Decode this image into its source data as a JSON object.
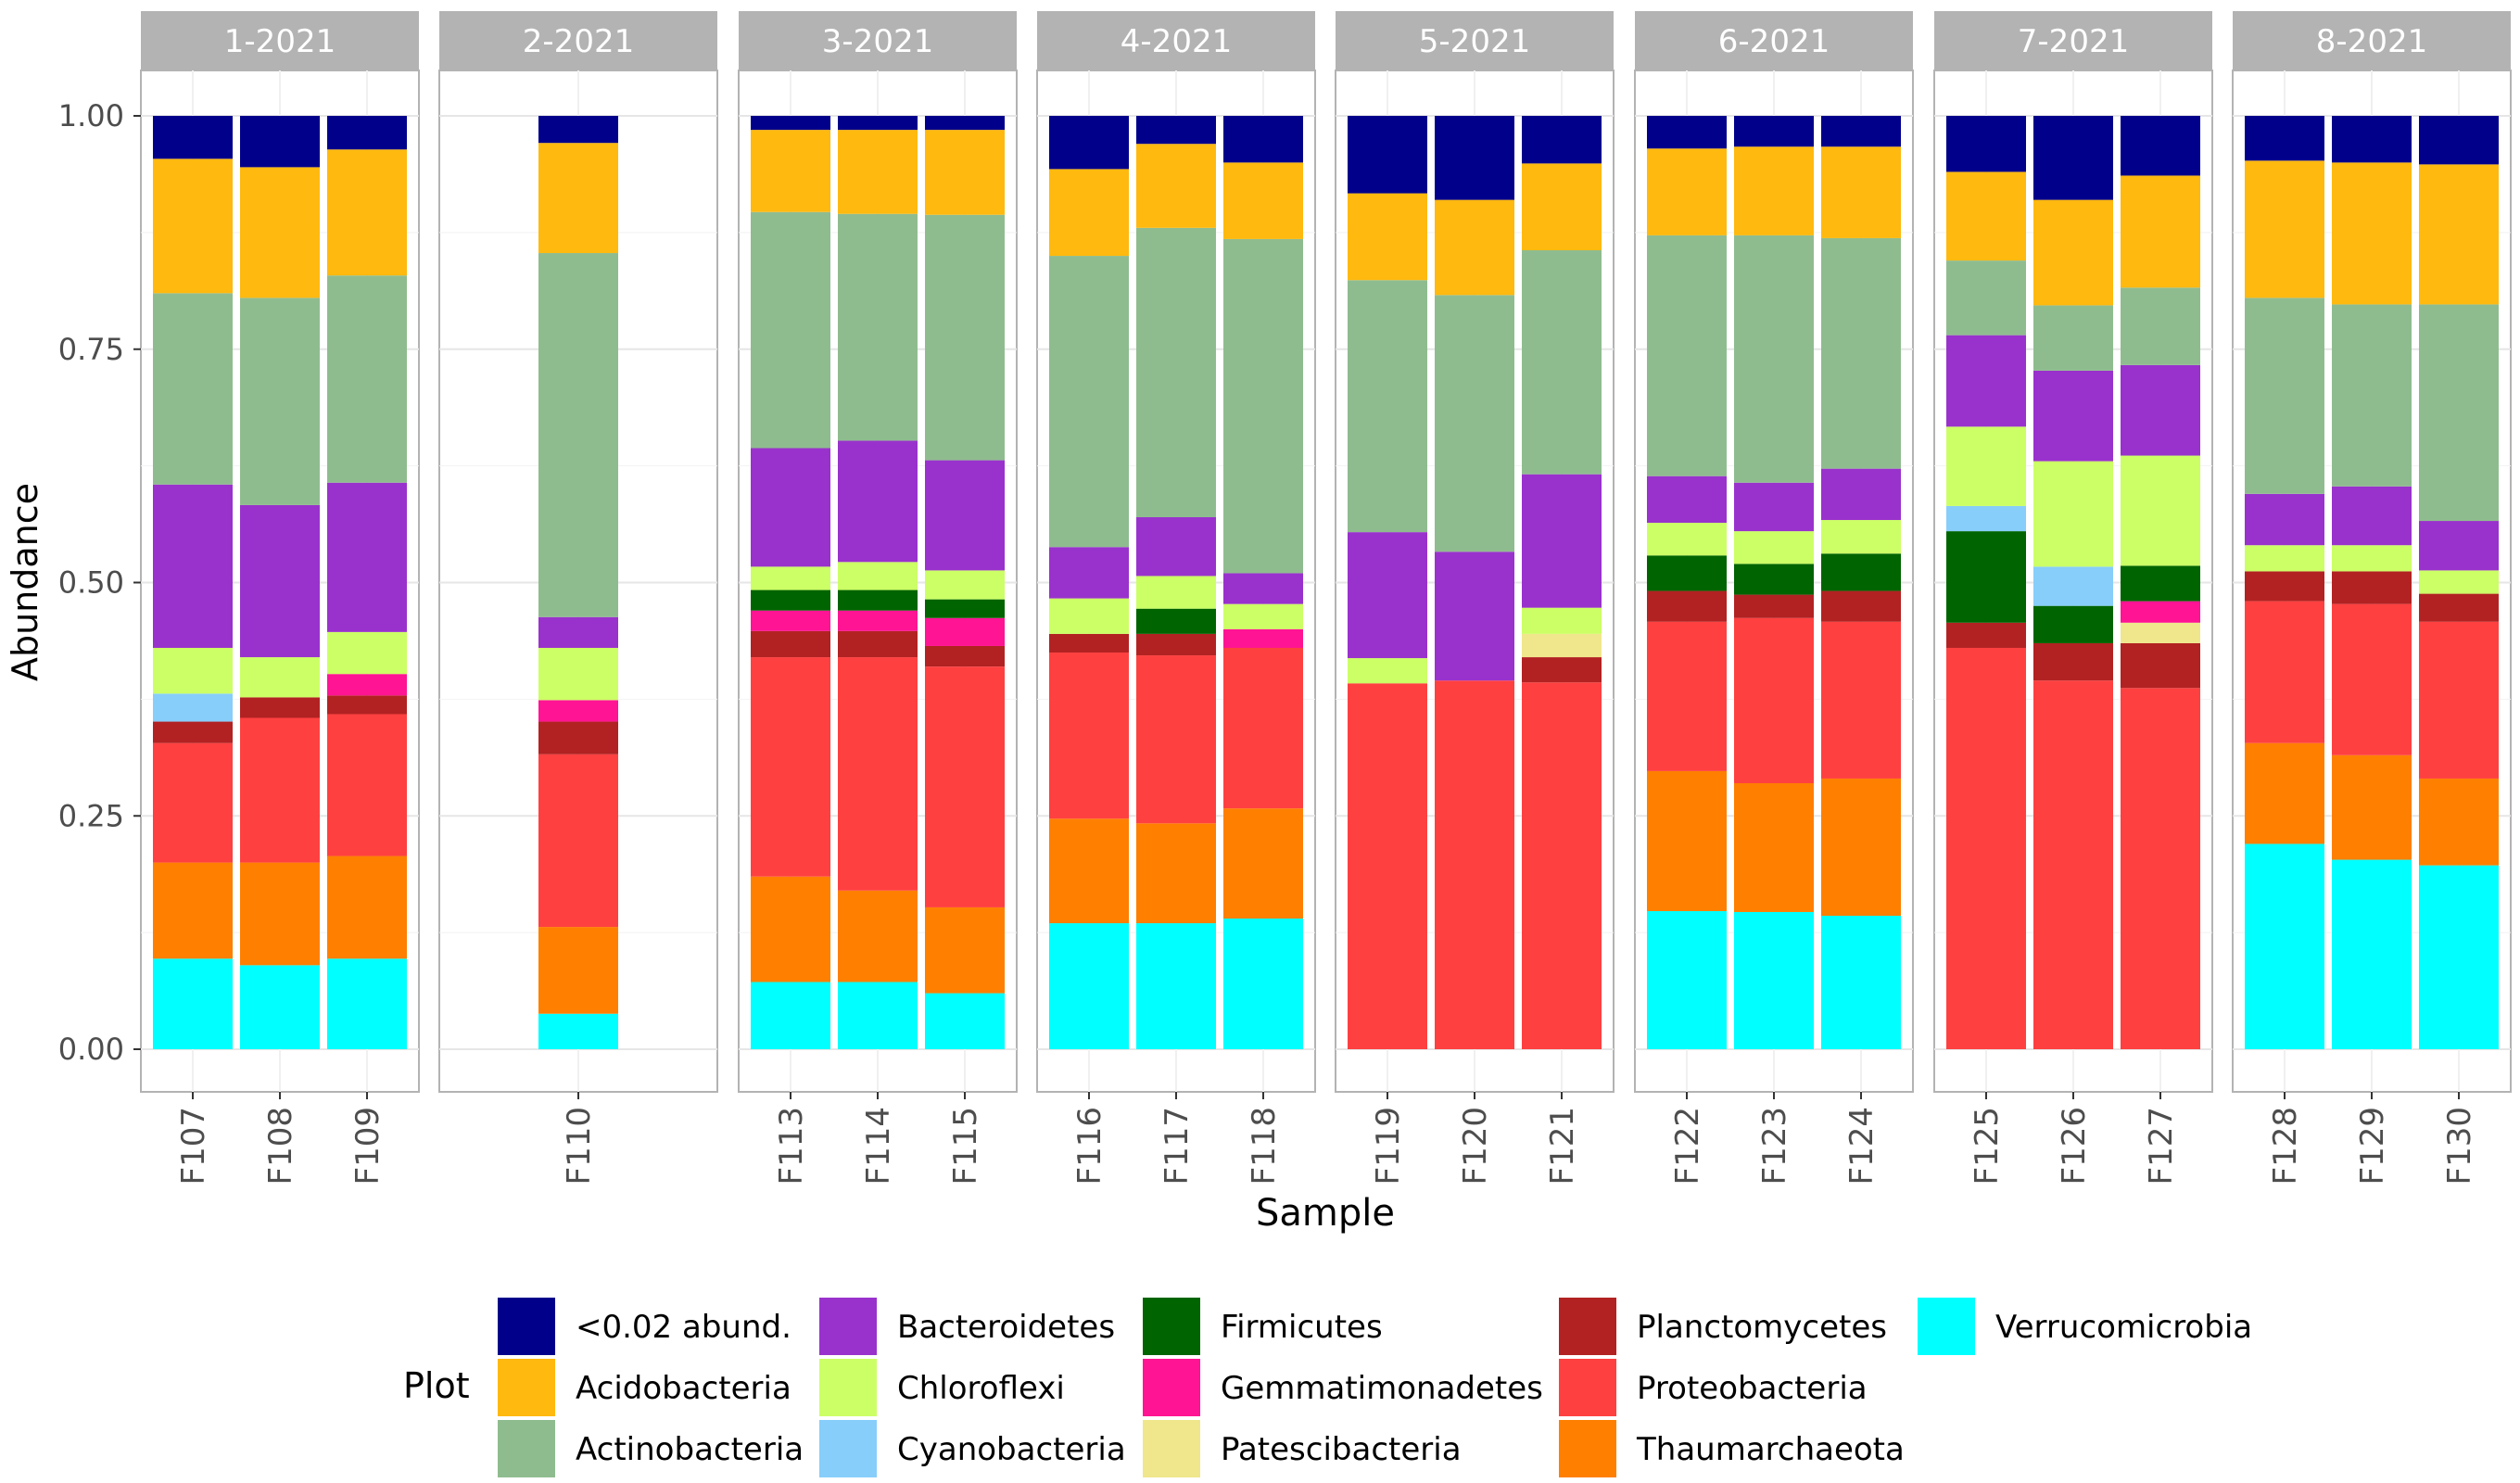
{
  "chart_data": {
    "type": "bar",
    "stacked": true,
    "faceted_by": "month",
    "xlabel": "Sample",
    "ylabel": "Abundance",
    "ylim": [
      0,
      1
    ],
    "yticks": [
      "0.00",
      "0.25",
      "0.50",
      "0.75",
      "1.00"
    ],
    "ytick_values": [
      0,
      0.25,
      0.5,
      0.75,
      1.0
    ],
    "legend_title": "Plot",
    "legend_position": "bottom",
    "stack_order": [
      "Verrucomicrobia",
      "Thaumarchaeota",
      "Proteobacteria",
      "Planctomycetes",
      "Patescibacteria",
      "Gemmatimonadetes",
      "Firmicutes",
      "Cyanobacteria",
      "Chloroflexi",
      "Bacteroidetes",
      "Actinobacteria",
      "Acidobacteria",
      "<0.02 abund."
    ],
    "legend": [
      {
        "name": "<0.02 abund.",
        "color": "#00008B"
      },
      {
        "name": "Acidobacteria",
        "color": "#FFB90F"
      },
      {
        "name": "Actinobacteria",
        "color": "#8FBC8F"
      },
      {
        "name": "Bacteroidetes",
        "color": "#9932CC"
      },
      {
        "name": "Chloroflexi",
        "color": "#CCFF66"
      },
      {
        "name": "Cyanobacteria",
        "color": "#87CEFA"
      },
      {
        "name": "Firmicutes",
        "color": "#006400"
      },
      {
        "name": "Gemmatimonadetes",
        "color": "#FF1493"
      },
      {
        "name": "Patescibacteria",
        "color": "#F0E68C"
      },
      {
        "name": "Planctomycetes",
        "color": "#B22222"
      },
      {
        "name": "Proteobacteria",
        "color": "#FF4040"
      },
      {
        "name": "Thaumarchaeota",
        "color": "#FF7F00"
      },
      {
        "name": "Verrucomicrobia",
        "color": "#00FFFF"
      }
    ],
    "panels": [
      {
        "label": "1-2021",
        "samples": [
          {
            "name": "F107",
            "values": {
              "Verrucomicrobia": 0.097,
              "Thaumarchaeota": 0.103,
              "Proteobacteria": 0.128,
              "Planctomycetes": 0.023,
              "Cyanobacteria": 0.03,
              "Chloroflexi": 0.049,
              "Bacteroidetes": 0.175,
              "Actinobacteria": 0.205,
              "Acidobacteria": 0.144,
              "<0.02 abund.": 0.046
            }
          },
          {
            "name": "F108",
            "values": {
              "Verrucomicrobia": 0.09,
              "Thaumarchaeota": 0.11,
              "Proteobacteria": 0.155,
              "Planctomycetes": 0.022,
              "Chloroflexi": 0.043,
              "Bacteroidetes": 0.163,
              "Actinobacteria": 0.222,
              "Acidobacteria": 0.14,
              "<0.02 abund.": 0.055
            }
          },
          {
            "name": "F109",
            "values": {
              "Verrucomicrobia": 0.097,
              "Thaumarchaeota": 0.11,
              "Proteobacteria": 0.152,
              "Planctomycetes": 0.02,
              "Gemmatimonadetes": 0.023,
              "Chloroflexi": 0.045,
              "Bacteroidetes": 0.16,
              "Actinobacteria": 0.222,
              "Acidobacteria": 0.135,
              "<0.02 abund.": 0.036
            }
          }
        ]
      },
      {
        "label": "2-2021",
        "samples": [
          {
            "name": "F110",
            "values": {
              "Verrucomicrobia": 0.038,
              "Thaumarchaeota": 0.093,
              "Proteobacteria": 0.185,
              "Planctomycetes": 0.035,
              "Gemmatimonadetes": 0.023,
              "Chloroflexi": 0.056,
              "Bacteroidetes": 0.033,
              "Actinobacteria": 0.39,
              "Acidobacteria": 0.118,
              "<0.02 abund.": 0.029
            }
          }
        ]
      },
      {
        "label": "3-2021",
        "samples": [
          {
            "name": "F113",
            "values": {
              "Verrucomicrobia": 0.072,
              "Thaumarchaeota": 0.113,
              "Proteobacteria": 0.235,
              "Planctomycetes": 0.028,
              "Gemmatimonadetes": 0.022,
              "Firmicutes": 0.022,
              "Chloroflexi": 0.025,
              "Bacteroidetes": 0.127,
              "Actinobacteria": 0.253,
              "Acidobacteria": 0.088,
              "<0.02 abund.": 0.015
            }
          },
          {
            "name": "F114",
            "values": {
              "Verrucomicrobia": 0.072,
              "Thaumarchaeota": 0.098,
              "Proteobacteria": 0.25,
              "Planctomycetes": 0.028,
              "Gemmatimonadetes": 0.022,
              "Firmicutes": 0.022,
              "Chloroflexi": 0.03,
              "Bacteroidetes": 0.13,
              "Actinobacteria": 0.243,
              "Acidobacteria": 0.09,
              "<0.02 abund.": 0.015
            }
          },
          {
            "name": "F115",
            "values": {
              "Verrucomicrobia": 0.06,
              "Thaumarchaeota": 0.092,
              "Proteobacteria": 0.258,
              "Planctomycetes": 0.022,
              "Gemmatimonadetes": 0.03,
              "Firmicutes": 0.02,
              "Chloroflexi": 0.031,
              "Bacteroidetes": 0.118,
              "Actinobacteria": 0.263,
              "Acidobacteria": 0.091,
              "<0.02 abund.": 0.015
            }
          }
        ]
      },
      {
        "label": "4-2021",
        "samples": [
          {
            "name": "F116",
            "values": {
              "Verrucomicrobia": 0.135,
              "Thaumarchaeota": 0.112,
              "Proteobacteria": 0.178,
              "Planctomycetes": 0.02,
              "Chloroflexi": 0.038,
              "Bacteroidetes": 0.055,
              "Actinobacteria": 0.312,
              "Acidobacteria": 0.093,
              "<0.02 abund.": 0.057
            }
          },
          {
            "name": "F117",
            "values": {
              "Verrucomicrobia": 0.135,
              "Thaumarchaeota": 0.107,
              "Proteobacteria": 0.18,
              "Planctomycetes": 0.023,
              "Firmicutes": 0.027,
              "Chloroflexi": 0.035,
              "Bacteroidetes": 0.063,
              "Actinobacteria": 0.31,
              "Acidobacteria": 0.09,
              "<0.02 abund.": 0.03
            }
          },
          {
            "name": "F118",
            "values": {
              "Verrucomicrobia": 0.14,
              "Thaumarchaeota": 0.118,
              "Proteobacteria": 0.172,
              "Gemmatimonadetes": 0.02,
              "Chloroflexi": 0.027,
              "Bacteroidetes": 0.033,
              "Actinobacteria": 0.358,
              "Acidobacteria": 0.082,
              "<0.02 abund.": 0.05
            }
          }
        ]
      },
      {
        "label": "5-2021",
        "samples": [
          {
            "name": "F119",
            "values": {
              "Proteobacteria": 0.392,
              "Chloroflexi": 0.027,
              "Bacteroidetes": 0.135,
              "Actinobacteria": 0.27,
              "Acidobacteria": 0.093,
              "<0.02 abund.": 0.083
            }
          },
          {
            "name": "F120",
            "values": {
              "Proteobacteria": 0.395,
              "Bacteroidetes": 0.138,
              "Actinobacteria": 0.275,
              "Acidobacteria": 0.102,
              "<0.02 abund.": 0.09
            }
          },
          {
            "name": "F121",
            "values": {
              "Proteobacteria": 0.393,
              "Planctomycetes": 0.027,
              "Patescibacteria": 0.025,
              "Chloroflexi": 0.028,
              "Bacteroidetes": 0.143,
              "Actinobacteria": 0.24,
              "Acidobacteria": 0.093,
              "<0.02 abund.": 0.051
            }
          }
        ]
      },
      {
        "label": "6-2021",
        "samples": [
          {
            "name": "F122",
            "values": {
              "Verrucomicrobia": 0.148,
              "Thaumarchaeota": 0.15,
              "Proteobacteria": 0.16,
              "Planctomycetes": 0.033,
              "Firmicutes": 0.038,
              "Chloroflexi": 0.035,
              "Bacteroidetes": 0.05,
              "Actinobacteria": 0.258,
              "Acidobacteria": 0.093,
              "<0.02 abund.": 0.035
            }
          },
          {
            "name": "F123",
            "values": {
              "Verrucomicrobia": 0.147,
              "Thaumarchaeota": 0.138,
              "Proteobacteria": 0.177,
              "Planctomycetes": 0.025,
              "Firmicutes": 0.033,
              "Chloroflexi": 0.035,
              "Bacteroidetes": 0.052,
              "Actinobacteria": 0.265,
              "Acidobacteria": 0.095,
              "<0.02 abund.": 0.033
            }
          },
          {
            "name": "F124",
            "values": {
              "Verrucomicrobia": 0.143,
              "Thaumarchaeota": 0.147,
              "Proteobacteria": 0.168,
              "Planctomycetes": 0.033,
              "Firmicutes": 0.04,
              "Chloroflexi": 0.036,
              "Bacteroidetes": 0.055,
              "Actinobacteria": 0.247,
              "Acidobacteria": 0.098,
              "<0.02 abund.": 0.033
            }
          }
        ]
      },
      {
        "label": "7-2021",
        "samples": [
          {
            "name": "F125",
            "values": {
              "Proteobacteria": 0.43,
              "Planctomycetes": 0.027,
              "Firmicutes": 0.098,
              "Cyanobacteria": 0.027,
              "Chloroflexi": 0.085,
              "Bacteroidetes": 0.098,
              "Actinobacteria": 0.08,
              "Acidobacteria": 0.095,
              "<0.02 abund.": 0.06
            }
          },
          {
            "name": "F126",
            "values": {
              "Proteobacteria": 0.395,
              "Planctomycetes": 0.04,
              "Firmicutes": 0.04,
              "Cyanobacteria": 0.042,
              "Chloroflexi": 0.113,
              "Bacteroidetes": 0.097,
              "Actinobacteria": 0.07,
              "Acidobacteria": 0.113,
              "<0.02 abund.": 0.09
            }
          },
          {
            "name": "F127",
            "values": {
              "Proteobacteria": 0.387,
              "Planctomycetes": 0.048,
              "Patescibacteria": 0.022,
              "Gemmatimonadetes": 0.023,
              "Firmicutes": 0.038,
              "Chloroflexi": 0.118,
              "Bacteroidetes": 0.097,
              "Actinobacteria": 0.083,
              "Acidobacteria": 0.12,
              "<0.02 abund.": 0.064
            }
          }
        ]
      },
      {
        "label": "8-2021",
        "samples": [
          {
            "name": "F128",
            "values": {
              "Verrucomicrobia": 0.22,
              "Thaumarchaeota": 0.108,
              "Proteobacteria": 0.152,
              "Planctomycetes": 0.032,
              "Chloroflexi": 0.028,
              "Bacteroidetes": 0.055,
              "Actinobacteria": 0.21,
              "Acidobacteria": 0.147,
              "<0.02 abund.": 0.048
            }
          },
          {
            "name": "F129",
            "values": {
              "Verrucomicrobia": 0.203,
              "Thaumarchaeota": 0.112,
              "Proteobacteria": 0.162,
              "Planctomycetes": 0.035,
              "Chloroflexi": 0.028,
              "Bacteroidetes": 0.063,
              "Actinobacteria": 0.195,
              "Acidobacteria": 0.152,
              "<0.02 abund.": 0.05
            }
          },
          {
            "name": "F130",
            "values": {
              "Verrucomicrobia": 0.197,
              "Thaumarchaeota": 0.093,
              "Proteobacteria": 0.168,
              "Planctomycetes": 0.03,
              "Chloroflexi": 0.025,
              "Bacteroidetes": 0.053,
              "Actinobacteria": 0.232,
              "Acidobacteria": 0.15,
              "<0.02 abund.": 0.052
            }
          }
        ]
      }
    ]
  }
}
